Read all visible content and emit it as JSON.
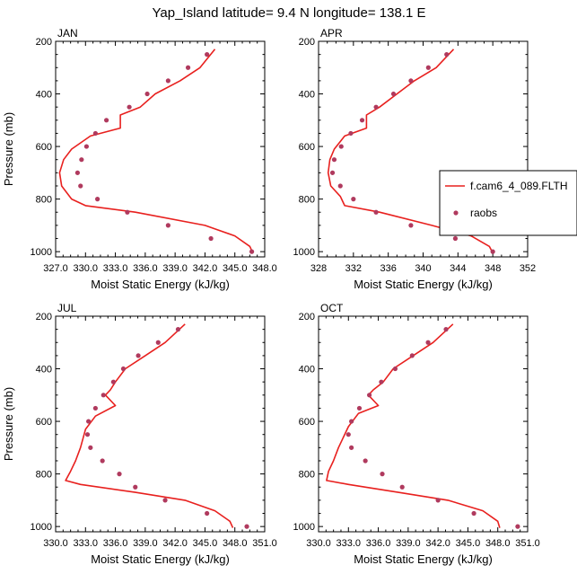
{
  "figure": {
    "title": "Yap_Island  latitude= 9.4 N longitude= 138.1 E"
  },
  "legend": [
    {
      "label": "f.cam6_4_089.FLTH",
      "kind": "line",
      "color": "#e8201e"
    },
    {
      "label": "raobs",
      "kind": "marker",
      "color": "#b03a5e"
    }
  ],
  "chart_data": [
    {
      "type": "line",
      "panel_label": "JAN",
      "xlabel": "Moist Static Energy (kJ/kg)",
      "ylabel": "Pressure (mb)",
      "xlim": [
        327,
        348
      ],
      "ylim": [
        1020,
        200
      ],
      "x_ticks": [
        327,
        330,
        333,
        336,
        339,
        342,
        345,
        348
      ],
      "x_tick_labels": [
        "327.0",
        "330.0",
        "333.0",
        "336.0",
        "339.0",
        "342.0",
        "345.0",
        "348.0"
      ],
      "y_ticks": [
        200,
        400,
        600,
        800,
        1000
      ],
      "y_tick_labels": [
        "200",
        "400",
        "600",
        "800",
        "1000"
      ],
      "series": [
        {
          "name": "f.cam6_4_089.FLTH",
          "style": "line",
          "color": "#e8201e",
          "points": [
            [
              343.0,
              230
            ],
            [
              341.5,
              300
            ],
            [
              339.5,
              350
            ],
            [
              337.0,
              400
            ],
            [
              335.5,
              450
            ],
            [
              333.5,
              480
            ],
            [
              333.5,
              530
            ],
            [
              330.5,
              560
            ],
            [
              328.6,
              610
            ],
            [
              327.8,
              650
            ],
            [
              327.4,
              700
            ],
            [
              327.6,
              750
            ],
            [
              328.6,
              800
            ],
            [
              330.0,
              825
            ],
            [
              335.0,
              850
            ],
            [
              342.0,
              900
            ],
            [
              345.0,
              940
            ],
            [
              346.5,
              980
            ],
            [
              346.8,
              1005
            ]
          ]
        },
        {
          "name": "raobs",
          "style": "marker",
          "color": "#b03a5e",
          "points": [
            [
              342.2,
              250
            ],
            [
              340.3,
              300
            ],
            [
              338.3,
              350
            ],
            [
              336.2,
              400
            ],
            [
              334.4,
              450
            ],
            [
              332.1,
              500
            ],
            [
              331.0,
              550
            ],
            [
              330.1,
              600
            ],
            [
              329.6,
              650
            ],
            [
              329.2,
              700
            ],
            [
              329.5,
              750
            ],
            [
              331.2,
              800
            ],
            [
              334.2,
              850
            ],
            [
              338.3,
              900
            ],
            [
              342.6,
              950
            ],
            [
              346.7,
              1000
            ]
          ]
        }
      ]
    },
    {
      "type": "line",
      "panel_label": "APR",
      "xlabel": "Moist Static Energy (kJ/kg)",
      "ylabel": "",
      "xlim": [
        328,
        352
      ],
      "ylim": [
        1020,
        200
      ],
      "x_ticks": [
        328,
        332,
        336,
        340,
        344,
        348,
        352
      ],
      "x_tick_labels": [
        "328",
        "332",
        "336",
        "340",
        "344",
        "348",
        "352"
      ],
      "y_ticks": [
        200,
        400,
        600,
        800,
        1000
      ],
      "y_tick_labels": [
        "200",
        "400",
        "600",
        "800",
        "1000"
      ],
      "series": [
        {
          "name": "f.cam6_4_089.FLTH",
          "style": "line",
          "color": "#e8201e",
          "points": [
            [
              343.5,
              230
            ],
            [
              341.5,
              300
            ],
            [
              339.0,
              350
            ],
            [
              337.0,
              400
            ],
            [
              335.0,
              450
            ],
            [
              333.5,
              480
            ],
            [
              333.5,
              530
            ],
            [
              331.0,
              560
            ],
            [
              329.8,
              610
            ],
            [
              329.3,
              650
            ],
            [
              329.1,
              700
            ],
            [
              329.4,
              750
            ],
            [
              330.5,
              790
            ],
            [
              331.0,
              825
            ],
            [
              335.0,
              850
            ],
            [
              341.0,
              900
            ],
            [
              345.5,
              940
            ],
            [
              347.6,
              980
            ],
            [
              348.0,
              1005
            ]
          ]
        },
        {
          "name": "raobs",
          "style": "marker",
          "color": "#b03a5e",
          "points": [
            [
              342.7,
              250
            ],
            [
              340.6,
              300
            ],
            [
              338.6,
              350
            ],
            [
              336.6,
              400
            ],
            [
              334.6,
              450
            ],
            [
              333.0,
              500
            ],
            [
              331.7,
              550
            ],
            [
              330.6,
              600
            ],
            [
              329.8,
              650
            ],
            [
              329.6,
              700
            ],
            [
              330.5,
              750
            ],
            [
              332.0,
              800
            ],
            [
              334.6,
              850
            ],
            [
              338.6,
              900
            ],
            [
              343.7,
              950
            ],
            [
              348.0,
              1000
            ]
          ]
        }
      ]
    },
    {
      "type": "line",
      "panel_label": "JUL",
      "xlabel": "Moist Static Energy (kJ/kg)",
      "ylabel": "Pressure (mb)",
      "xlim": [
        330,
        351
      ],
      "ylim": [
        1020,
        200
      ],
      "x_ticks": [
        330,
        333,
        336,
        339,
        342,
        345,
        348,
        351
      ],
      "x_tick_labels": [
        "330.0",
        "333.0",
        "336.0",
        "339.0",
        "342.0",
        "345.0",
        "348.0",
        "351.0"
      ],
      "y_ticks": [
        200,
        400,
        600,
        800,
        1000
      ],
      "y_tick_labels": [
        "200",
        "400",
        "600",
        "800",
        "1000"
      ],
      "series": [
        {
          "name": "f.cam6_4_089.FLTH",
          "style": "line",
          "color": "#e8201e",
          "points": [
            [
              343.0,
              230
            ],
            [
              341.0,
              300
            ],
            [
              339.0,
              350
            ],
            [
              337.0,
              400
            ],
            [
              336.0,
              450
            ],
            [
              335.5,
              480
            ],
            [
              335.0,
              500
            ],
            [
              336.0,
              540
            ],
            [
              334.0,
              580
            ],
            [
              333.0,
              630
            ],
            [
              332.5,
              700
            ],
            [
              332.0,
              750
            ],
            [
              331.5,
              790
            ],
            [
              331.0,
              825
            ],
            [
              332.5,
              840
            ],
            [
              338.0,
              870
            ],
            [
              343.0,
              900
            ],
            [
              346.0,
              940
            ],
            [
              347.5,
              980
            ],
            [
              347.8,
              1005
            ]
          ]
        },
        {
          "name": "raobs",
          "style": "marker",
          "color": "#b03a5e",
          "points": [
            [
              342.3,
              250
            ],
            [
              340.3,
              300
            ],
            [
              338.3,
              350
            ],
            [
              336.8,
              400
            ],
            [
              335.8,
              450
            ],
            [
              334.8,
              500
            ],
            [
              334.0,
              550
            ],
            [
              333.3,
              600
            ],
            [
              333.2,
              650
            ],
            [
              333.5,
              700
            ],
            [
              334.7,
              750
            ],
            [
              336.4,
              800
            ],
            [
              338.0,
              850
            ],
            [
              341.0,
              900
            ],
            [
              345.2,
              950
            ],
            [
              349.2,
              1000
            ]
          ]
        }
      ]
    },
    {
      "type": "line",
      "panel_label": "OCT",
      "xlabel": "Moist Static Energy (kJ/kg)",
      "ylabel": "",
      "xlim": [
        330,
        351
      ],
      "ylim": [
        1020,
        200
      ],
      "x_ticks": [
        330,
        333,
        336,
        339,
        342,
        345,
        348,
        351
      ],
      "x_tick_labels": [
        "330.0",
        "333.0",
        "336.0",
        "339.0",
        "342.0",
        "345.0",
        "348.0",
        "351.0"
      ],
      "y_ticks": [
        200,
        400,
        600,
        800,
        1000
      ],
      "y_tick_labels": [
        "200",
        "400",
        "600",
        "800",
        "1000"
      ],
      "series": [
        {
          "name": "f.cam6_4_089.FLTH",
          "style": "line",
          "color": "#e8201e",
          "points": [
            [
              343.5,
              230
            ],
            [
              341.5,
              300
            ],
            [
              339.5,
              350
            ],
            [
              337.5,
              400
            ],
            [
              336.5,
              450
            ],
            [
              335.5,
              480
            ],
            [
              335.0,
              500
            ],
            [
              336.0,
              540
            ],
            [
              334.0,
              570
            ],
            [
              333.0,
              620
            ],
            [
              332.0,
              700
            ],
            [
              331.5,
              750
            ],
            [
              331.0,
              790
            ],
            [
              330.8,
              825
            ],
            [
              333.0,
              840
            ],
            [
              338.0,
              870
            ],
            [
              343.0,
              900
            ],
            [
              346.5,
              940
            ],
            [
              348.0,
              980
            ],
            [
              348.2,
              1005
            ]
          ]
        },
        {
          "name": "raobs",
          "style": "marker",
          "color": "#b03a5e",
          "points": [
            [
              342.8,
              250
            ],
            [
              341.0,
              300
            ],
            [
              339.4,
              350
            ],
            [
              337.7,
              400
            ],
            [
              336.3,
              450
            ],
            [
              335.1,
              500
            ],
            [
              334.1,
              550
            ],
            [
              333.3,
              600
            ],
            [
              333.0,
              650
            ],
            [
              333.3,
              700
            ],
            [
              334.7,
              750
            ],
            [
              336.4,
              800
            ],
            [
              338.4,
              850
            ],
            [
              342.0,
              900
            ],
            [
              345.6,
              950
            ],
            [
              350.0,
              1000
            ]
          ]
        }
      ]
    }
  ]
}
